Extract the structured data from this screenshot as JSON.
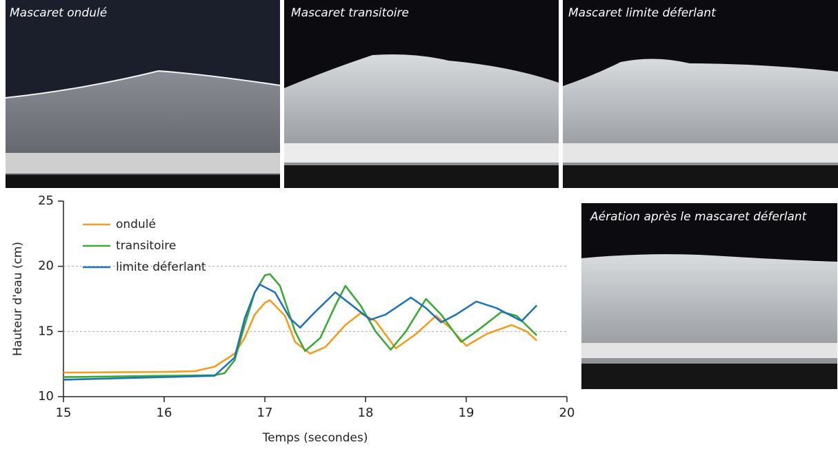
{
  "photos": [
    {
      "caption": "Mascaret ondulé"
    },
    {
      "caption": "Mascaret transitoire"
    },
    {
      "caption": "Mascaret limite déferlant"
    },
    {
      "caption": "Aération après le mascaret déferlant"
    }
  ],
  "chart_data": {
    "type": "line",
    "x_label": "Temps (secondes)",
    "y_label": "Hauteur d'eau (cm)",
    "xlim": [
      15,
      20
    ],
    "xticks": [
      15,
      16,
      17,
      18,
      19,
      20
    ],
    "ylim": [
      10,
      25
    ],
    "yticks": [
      10,
      15,
      20,
      25
    ],
    "grid": true,
    "legend": "top-left",
    "series": [
      {
        "name": "ondulé",
        "color": "#f39c1f",
        "x": [
          15,
          15.5,
          16,
          16.3,
          16.5,
          16.7,
          16.8,
          16.9,
          17.0,
          17.05,
          17.2,
          17.3,
          17.45,
          17.6,
          17.8,
          17.95,
          18.1,
          18.3,
          18.5,
          18.7,
          18.85,
          19.0,
          19.2,
          19.45,
          19.6,
          19.7
        ],
        "values": [
          11.85,
          11.87,
          11.9,
          11.95,
          12.3,
          13.3,
          14.5,
          16.3,
          17.2,
          17.4,
          16.2,
          14.2,
          13.3,
          13.8,
          15.5,
          16.4,
          15.8,
          13.7,
          14.8,
          16.2,
          15.2,
          13.9,
          14.8,
          15.5,
          15.0,
          14.3
        ]
      },
      {
        "name": "transitoire",
        "color": "#3aaa35",
        "x": [
          15,
          15.5,
          16,
          16.5,
          16.6,
          16.7,
          16.8,
          16.9,
          17.0,
          17.05,
          17.15,
          17.3,
          17.4,
          17.55,
          17.7,
          17.8,
          17.95,
          18.1,
          18.25,
          18.4,
          18.6,
          18.75,
          18.95,
          19.1,
          19.35,
          19.5,
          19.7
        ],
        "values": [
          11.5,
          11.55,
          11.6,
          11.65,
          11.8,
          12.8,
          15.5,
          18.0,
          19.3,
          19.4,
          18.5,
          15.0,
          13.5,
          14.5,
          17.0,
          18.5,
          17.0,
          15.0,
          13.6,
          15.0,
          17.5,
          16.3,
          14.2,
          15.0,
          16.5,
          16.2,
          14.7
        ]
      },
      {
        "name": "limite déferlant",
        "color": "#1f73b7",
        "x": [
          15,
          15.5,
          16,
          16.5,
          16.7,
          16.8,
          16.9,
          16.95,
          17.1,
          17.25,
          17.35,
          17.5,
          17.7,
          17.9,
          18.05,
          18.2,
          18.45,
          18.6,
          18.75,
          18.9,
          19.1,
          19.3,
          19.55,
          19.7
        ],
        "values": [
          11.3,
          11.4,
          11.5,
          11.6,
          13.0,
          16.0,
          18.0,
          18.6,
          18.0,
          16.0,
          15.3,
          16.5,
          18.0,
          16.8,
          15.9,
          16.3,
          17.6,
          16.8,
          15.7,
          16.3,
          17.3,
          16.8,
          15.8,
          17.0
        ]
      }
    ]
  }
}
